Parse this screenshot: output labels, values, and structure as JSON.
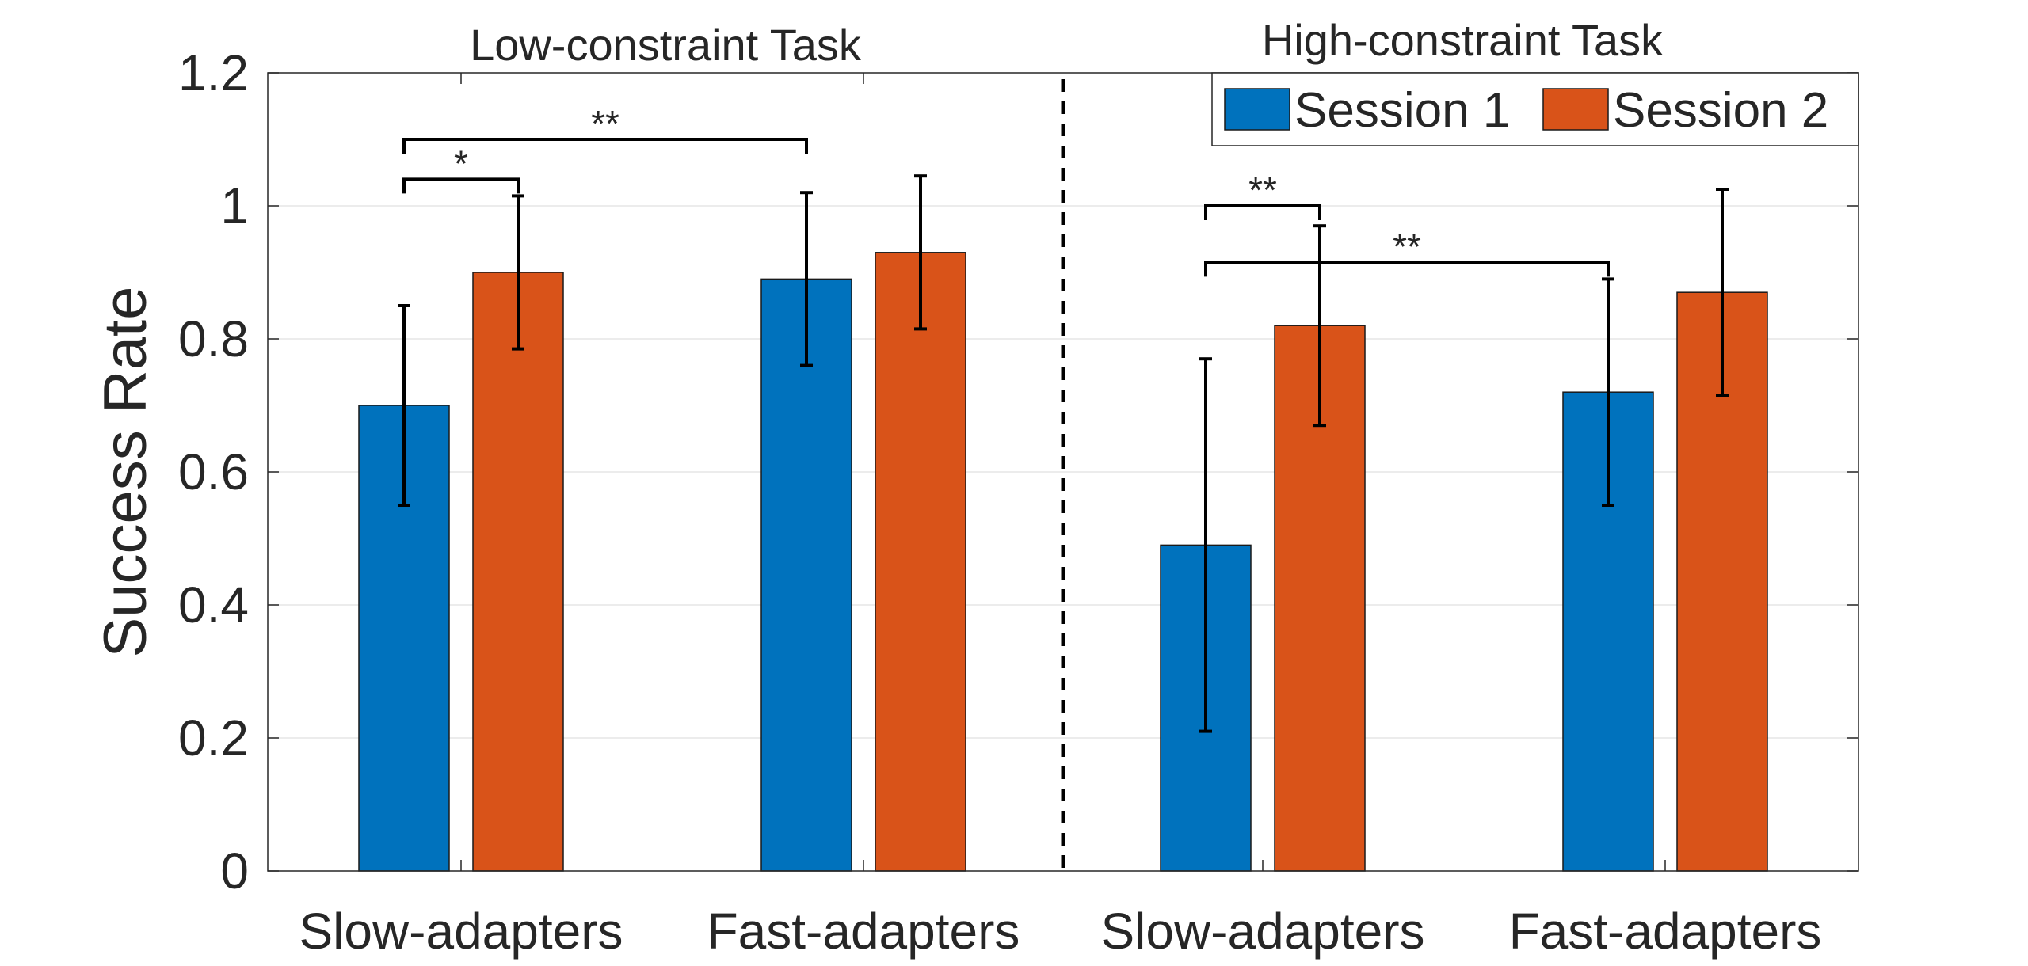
{
  "chart_data": {
    "type": "bar",
    "ylabel": "Success Rate",
    "ylim": [
      0,
      1.2
    ],
    "yticks": [
      0,
      0.2,
      0.4,
      0.6,
      0.8,
      1,
      1.2
    ],
    "ytick_labels": [
      "0",
      "0.2",
      "0.4",
      "0.6",
      "0.8",
      "1",
      "1.2"
    ],
    "grid": true,
    "categories": [
      "Slow-adapters",
      "Fast-adapters",
      "Slow-adapters",
      "Fast-adapters"
    ],
    "task_labels": [
      "Low-constraint Task",
      "High-constraint Task"
    ],
    "series": [
      {
        "name": "Session 1",
        "color": "#0072BD",
        "values": [
          0.7,
          0.89,
          0.49,
          0.72
        ],
        "error": [
          0.15,
          0.13,
          0.28,
          0.17
        ]
      },
      {
        "name": "Session 2",
        "color": "#D95319",
        "values": [
          0.9,
          0.93,
          0.82,
          0.87
        ],
        "error": [
          0.115,
          0.115,
          0.15,
          0.155
        ]
      }
    ],
    "legend_position": "top-right",
    "significance": [
      {
        "label": "*",
        "from": [
          0,
          0
        ],
        "to": [
          0,
          1
        ],
        "y": 1.04
      },
      {
        "label": "**",
        "from": [
          0,
          0
        ],
        "to": [
          1,
          0
        ],
        "y": 1.1
      },
      {
        "label": "**",
        "from": [
          2,
          0
        ],
        "to": [
          2,
          1
        ],
        "y": 1.0
      },
      {
        "label": "**",
        "from": [
          2,
          0
        ],
        "to": [
          3,
          0
        ],
        "y": 0.915
      }
    ]
  }
}
